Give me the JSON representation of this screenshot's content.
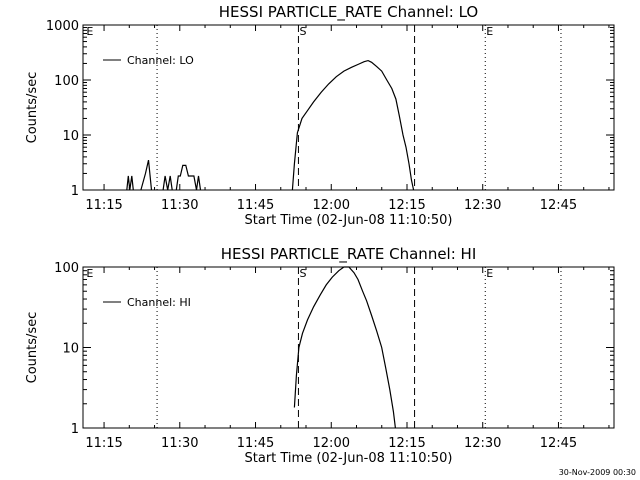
{
  "footer": {
    "timestamp": "30-Nov-2009 00:30"
  },
  "chart_data": [
    {
      "type": "line",
      "title": "HESSI PARTICLE_RATE Channel: LO",
      "xlabel": "Start Time (02-Jun-08 11:10:50)",
      "ylabel": "Counts/sec",
      "y_scale": "log",
      "ylim": [
        1,
        1000
      ],
      "y_ticks": [
        1,
        10,
        100,
        1000
      ],
      "x_ticks": [
        "11:15",
        "11:30",
        "11:45",
        "12:00",
        "12:15",
        "12:30",
        "12:45"
      ],
      "x_tick_minutes": [
        15,
        30,
        45,
        60,
        75,
        90,
        105
      ],
      "xlim_minutes": [
        10.83,
        116
      ],
      "markers": [
        {
          "label": "E",
          "minute": 11.3,
          "style": "none"
        },
        {
          "label": "",
          "minute": 25.5,
          "style": "dotted"
        },
        {
          "label": "S",
          "minute": 53.5,
          "style": "dashed"
        },
        {
          "label": "",
          "minute": 76.5,
          "style": "dashed"
        },
        {
          "label": "E",
          "minute": 90.5,
          "style": "dotted"
        },
        {
          "label": "",
          "minute": 105.5,
          "style": "dotted"
        }
      ],
      "legend": {
        "label": "Channel: LO",
        "position": "top-left"
      },
      "series": [
        {
          "name": "Channel: LO",
          "segments": [
            [
              [
                19.5,
                1
              ],
              [
                19.8,
                1.8
              ],
              [
                20.1,
                1
              ],
              [
                20.5,
                1.8
              ],
              [
                20.8,
                1
              ]
            ],
            [
              [
                22.3,
                1
              ],
              [
                23.2,
                2
              ],
              [
                23.8,
                3.5
              ],
              [
                24.4,
                1
              ]
            ],
            [
              [
                26.7,
                1
              ],
              [
                27.1,
                1.8
              ],
              [
                27.6,
                1
              ],
              [
                28.1,
                1.8
              ],
              [
                28.5,
                1
              ]
            ],
            [
              [
                29.3,
                1
              ],
              [
                29.7,
                1.8
              ],
              [
                30.1,
                1.8
              ],
              [
                30.6,
                2.8
              ],
              [
                31.2,
                2.8
              ],
              [
                31.7,
                1.8
              ],
              [
                32.8,
                1.8
              ],
              [
                33.3,
                1
              ],
              [
                33.7,
                1.8
              ],
              [
                34.1,
                1
              ]
            ],
            [
              [
                52.3,
                1
              ],
              [
                52.7,
                3
              ],
              [
                53.3,
                11
              ],
              [
                54.2,
                20
              ],
              [
                55.2,
                27
              ],
              [
                56.5,
                40
              ],
              [
                58,
                60
              ],
              [
                59.5,
                85
              ],
              [
                61,
                115
              ],
              [
                62.5,
                145
              ],
              [
                64,
                170
              ],
              [
                65.5,
                195
              ],
              [
                66.5,
                215
              ],
              [
                67.3,
                225
              ],
              [
                68,
                210
              ],
              [
                69,
                175
              ],
              [
                70,
                145
              ],
              [
                71,
                100
              ],
              [
                72,
                70
              ],
              [
                72.8,
                45
              ],
              [
                73.5,
                22
              ],
              [
                74.2,
                10
              ],
              [
                74.8,
                6
              ],
              [
                75.4,
                3
              ],
              [
                75.9,
                1.5
              ],
              [
                76.3,
                1
              ]
            ]
          ]
        }
      ]
    },
    {
      "type": "line",
      "title": "HESSI PARTICLE_RATE Channel: HI",
      "xlabel": "Start Time (02-Jun-08 11:10:50)",
      "ylabel": "Counts/sec",
      "y_scale": "log",
      "ylim": [
        1,
        100
      ],
      "y_ticks": [
        1,
        10,
        100
      ],
      "x_ticks": [
        "11:15",
        "11:30",
        "11:45",
        "12:00",
        "12:15",
        "12:30",
        "12:45"
      ],
      "x_tick_minutes": [
        15,
        30,
        45,
        60,
        75,
        90,
        105
      ],
      "xlim_minutes": [
        10.83,
        116
      ],
      "markers": [
        {
          "label": "E",
          "minute": 11.3,
          "style": "none"
        },
        {
          "label": "",
          "minute": 25.5,
          "style": "dotted"
        },
        {
          "label": "S",
          "minute": 53.5,
          "style": "dashed"
        },
        {
          "label": "",
          "minute": 76.5,
          "style": "dashed"
        },
        {
          "label": "E",
          "minute": 90.5,
          "style": "dotted"
        },
        {
          "label": "",
          "minute": 105.5,
          "style": "dotted"
        }
      ],
      "legend": {
        "label": "Channel: HI",
        "position": "top-left"
      },
      "series": [
        {
          "name": "Channel: HI",
          "segments": [
            [
              [
                52.7,
                1.8
              ],
              [
                53.1,
                4.5
              ],
              [
                53.6,
                10
              ],
              [
                54.3,
                15
              ],
              [
                55.3,
                22
              ],
              [
                56.5,
                32
              ],
              [
                57.8,
                45
              ],
              [
                59,
                60
              ],
              [
                60.2,
                75
              ],
              [
                61.5,
                90
              ],
              [
                62.5,
                100
              ],
              [
                63.5,
                100
              ],
              [
                64.5,
                85
              ],
              [
                65.3,
                70
              ],
              [
                66.2,
                50
              ],
              [
                67,
                38
              ],
              [
                68,
                25
              ],
              [
                69,
                16
              ],
              [
                70,
                10
              ],
              [
                70.8,
                5.5
              ],
              [
                71.6,
                3
              ],
              [
                72.3,
                1.6
              ],
              [
                72.7,
                1
              ]
            ]
          ]
        }
      ]
    }
  ]
}
